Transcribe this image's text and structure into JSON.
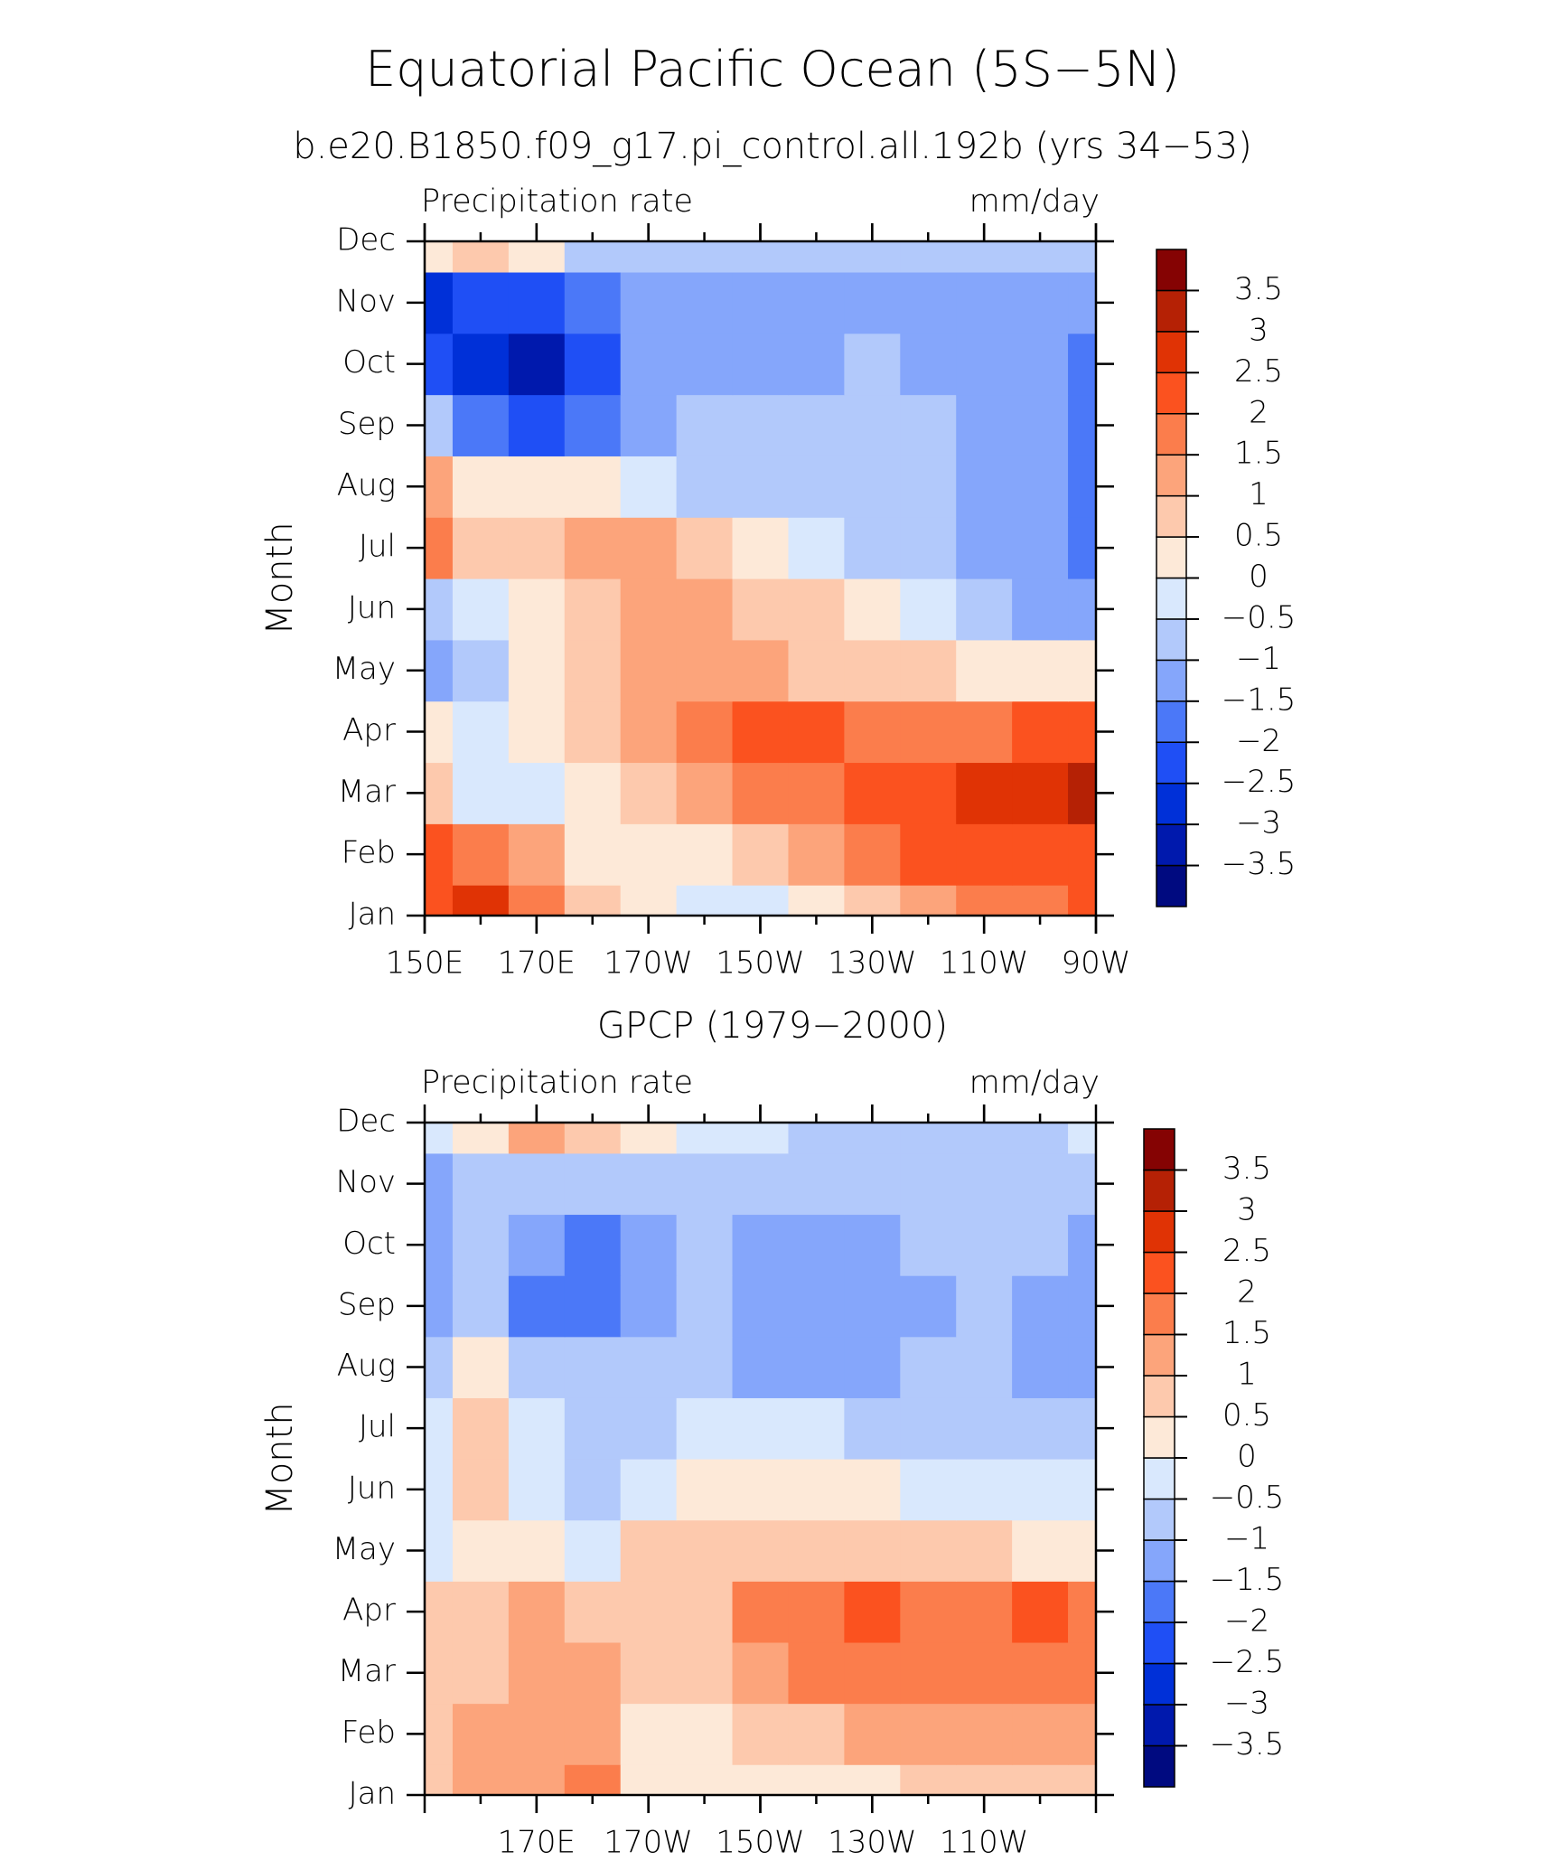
{
  "title": "Equatorial Pacific Ocean (5S−5N)",
  "chart_data": [
    {
      "type": "contour",
      "subtitle": "b.e20.B1850.f09_g17.pi_control.all.192b (yrs 34−53)",
      "left_string": "Precipitation rate",
      "right_string": "mm/day",
      "ylabel": "Month",
      "x": [
        150,
        160,
        170,
        180,
        190,
        200,
        210,
        220,
        230,
        240,
        250,
        260,
        270
      ],
      "y": [
        "Jan",
        "Feb",
        "Mar",
        "Apr",
        "May",
        "Jun",
        "Jul",
        "Aug",
        "Sep",
        "Oct",
        "Nov",
        "Dec"
      ],
      "xlim": [
        150,
        270
      ],
      "xticks": [
        {
          "value": 150,
          "label": "150E"
        },
        {
          "value": 170,
          "label": "170E"
        },
        {
          "value": 190,
          "label": "170W"
        },
        {
          "value": 210,
          "label": "150W"
        },
        {
          "value": 230,
          "label": "130W"
        },
        {
          "value": 250,
          "label": "110W"
        },
        {
          "value": 270,
          "label": "90W"
        }
      ],
      "z": [
        [
          2.2,
          2.5,
          1.5,
          0.8,
          0.2,
          -0.3,
          -0.3,
          0.2,
          0.5,
          1.2,
          1.5,
          1.8,
          2.2
        ],
        [
          2.0,
          1.7,
          1.2,
          0.3,
          0.3,
          0.4,
          0.7,
          1.2,
          1.7,
          2.2,
          2.3,
          2.4,
          2.3
        ],
        [
          0.6,
          -0.3,
          -0.3,
          0.3,
          0.8,
          1.3,
          1.6,
          1.8,
          2.2,
          2.4,
          2.6,
          2.8,
          3.0
        ],
        [
          0.3,
          -0.2,
          0.3,
          0.6,
          1.2,
          1.8,
          2.2,
          2.0,
          1.8,
          1.7,
          1.8,
          2.0,
          2.4
        ],
        [
          -1.2,
          -0.6,
          0.2,
          0.6,
          1.2,
          1.2,
          1.0,
          0.8,
          0.6,
          0.5,
          0.2,
          0.0,
          0.1
        ],
        [
          -0.7,
          -0.3,
          0.3,
          0.5,
          1.2,
          1.2,
          0.9,
          0.6,
          0.3,
          -0.3,
          -0.6,
          -1.2,
          -1.3
        ],
        [
          1.6,
          0.6,
          0.8,
          1.2,
          1.1,
          0.6,
          0.2,
          -0.2,
          -0.6,
          -0.8,
          -1.1,
          -1.2,
          -1.6
        ],
        [
          1.2,
          0.3,
          0.3,
          0.1,
          -0.3,
          -0.6,
          -0.7,
          -0.8,
          -0.8,
          -0.9,
          -1.1,
          -1.2,
          -1.6
        ],
        [
          -0.8,
          -1.8,
          -2.3,
          -1.8,
          -1.2,
          -1.0,
          -0.9,
          -0.9,
          -0.8,
          -1.0,
          -1.2,
          -1.3,
          -1.7
        ],
        [
          -2.5,
          -2.8,
          -3.1,
          -2.2,
          -1.3,
          -1.2,
          -1.1,
          -1.1,
          -1.0,
          -1.1,
          -1.2,
          -1.3,
          -1.8
        ],
        [
          -2.6,
          -2.4,
          -2.4,
          -1.8,
          -1.1,
          -1.2,
          -1.2,
          -1.2,
          -1.2,
          -1.1,
          -1.1,
          -1.2,
          -1.4
        ],
        [
          0.4,
          0.7,
          0.2,
          -0.6,
          -0.9,
          -0.9,
          -0.9,
          -0.9,
          -0.9,
          -0.9,
          -0.9,
          -0.9,
          -0.9
        ]
      ],
      "levels": [
        {
          "value": -3.5,
          "label": "−3.5"
        },
        {
          "value": -3,
          "label": "−3"
        },
        {
          "value": -2.5,
          "label": "−2.5"
        },
        {
          "value": -2,
          "label": "−2"
        },
        {
          "value": -1.5,
          "label": "−1.5"
        },
        {
          "value": -1,
          "label": "−1"
        },
        {
          "value": -0.5,
          "label": "−0.5"
        },
        0,
        0.5,
        1,
        1.5,
        2,
        2.5,
        3,
        3.5
      ],
      "colors": [
        "#000a80",
        "#0019ad",
        "#0030d8",
        "#1f4ff5",
        "#4b78f8",
        "#85a6fb",
        "#b2c9fb",
        "#d9e8fd",
        "#fde9d8",
        "#fdc9ad",
        "#fca47b",
        "#fb7d4c",
        "#fb521f",
        "#e03305",
        "#b52105",
        "#850303"
      ]
    },
    {
      "type": "contour",
      "subtitle": "GPCP (1979−2000)",
      "left_string": "Precipitation rate",
      "right_string": "mm/day",
      "ylabel": "Month",
      "x": [
        150,
        160,
        170,
        180,
        190,
        200,
        210,
        220,
        230,
        240,
        250,
        260,
        270
      ],
      "y": [
        "Jan",
        "Feb",
        "Mar",
        "Apr",
        "May",
        "Jun",
        "Jul",
        "Aug",
        "Sep",
        "Oct",
        "Nov",
        "Dec"
      ],
      "xlim": [
        150,
        270
      ],
      "xticks": [
        {
          "value": 170,
          "label": "170E"
        },
        {
          "value": 190,
          "label": "170W"
        },
        {
          "value": 210,
          "label": "150W"
        },
        {
          "value": 230,
          "label": "130W"
        },
        {
          "value": 250,
          "label": "110W"
        }
      ],
      "z": [
        [
          0.7,
          1.0,
          1.3,
          1.8,
          0.3,
          0.2,
          0.1,
          0.3,
          0.4,
          0.5,
          0.6,
          0.7,
          0.8
        ],
        [
          0.8,
          1.0,
          1.4,
          1.2,
          0.3,
          0.4,
          0.6,
          0.8,
          1.0,
          1.0,
          1.1,
          1.2,
          1.3
        ],
        [
          0.8,
          0.9,
          1.2,
          1.1,
          0.5,
          0.7,
          1.3,
          1.5,
          1.8,
          1.7,
          1.6,
          1.7,
          1.5
        ],
        [
          0.5,
          0.8,
          1.2,
          0.7,
          0.6,
          0.9,
          1.5,
          1.7,
          2.1,
          1.8,
          1.7,
          2.0,
          1.5
        ],
        [
          -0.2,
          0.2,
          0.1,
          -0.2,
          0.5,
          0.7,
          0.9,
          0.8,
          0.7,
          0.6,
          0.5,
          0.3,
          0.2
        ],
        [
          -0.3,
          0.6,
          -0.3,
          -0.6,
          -0.3,
          0.3,
          0.2,
          0.1,
          0.0,
          -0.3,
          -0.4,
          -0.4,
          -0.2
        ],
        [
          -0.3,
          0.5,
          -0.5,
          -0.6,
          -0.6,
          -0.4,
          -0.5,
          -0.5,
          -0.6,
          -0.6,
          -0.7,
          -0.8,
          -0.7
        ],
        [
          -0.6,
          0.4,
          -0.8,
          -0.7,
          -0.8,
          -0.7,
          -1.1,
          -1.2,
          -1.1,
          -0.9,
          -0.8,
          -1.1,
          -1.2
        ],
        [
          -1.1,
          -0.9,
          -1.7,
          -1.8,
          -1.2,
          -0.9,
          -1.2,
          -1.3,
          -1.2,
          -1.1,
          -0.8,
          -1.2,
          -1.4
        ],
        [
          -1.2,
          -0.8,
          -1.3,
          -1.8,
          -1.2,
          -0.8,
          -1.1,
          -1.1,
          -1.1,
          -0.9,
          -0.8,
          -1.0,
          -1.3
        ],
        [
          -1.1,
          -0.9,
          -0.7,
          -0.7,
          -0.6,
          -0.6,
          -0.7,
          -0.7,
          -0.8,
          -0.8,
          -0.7,
          -0.8,
          -0.8
        ],
        [
          -0.3,
          0.3,
          1.0,
          0.6,
          0.2,
          -0.1,
          -0.3,
          -0.6,
          -0.6,
          -0.6,
          -0.7,
          -0.6,
          -0.5
        ]
      ],
      "levels": [
        {
          "value": -3.5,
          "label": "−3.5"
        },
        {
          "value": -3,
          "label": "−3"
        },
        {
          "value": -2.5,
          "label": "−2.5"
        },
        {
          "value": -2,
          "label": "−2"
        },
        {
          "value": -1.5,
          "label": "−1.5"
        },
        {
          "value": -1,
          "label": "−1"
        },
        {
          "value": -0.5,
          "label": "−0.5"
        },
        0,
        0.5,
        1,
        1.5,
        2,
        2.5,
        3,
        3.5
      ],
      "colors": [
        "#000a80",
        "#0019ad",
        "#0030d8",
        "#1f4ff5",
        "#4b78f8",
        "#85a6fb",
        "#b2c9fb",
        "#d9e8fd",
        "#fde9d8",
        "#fdc9ad",
        "#fca47b",
        "#fb7d4c",
        "#fb521f",
        "#e03305",
        "#b52105",
        "#850303"
      ]
    }
  ]
}
